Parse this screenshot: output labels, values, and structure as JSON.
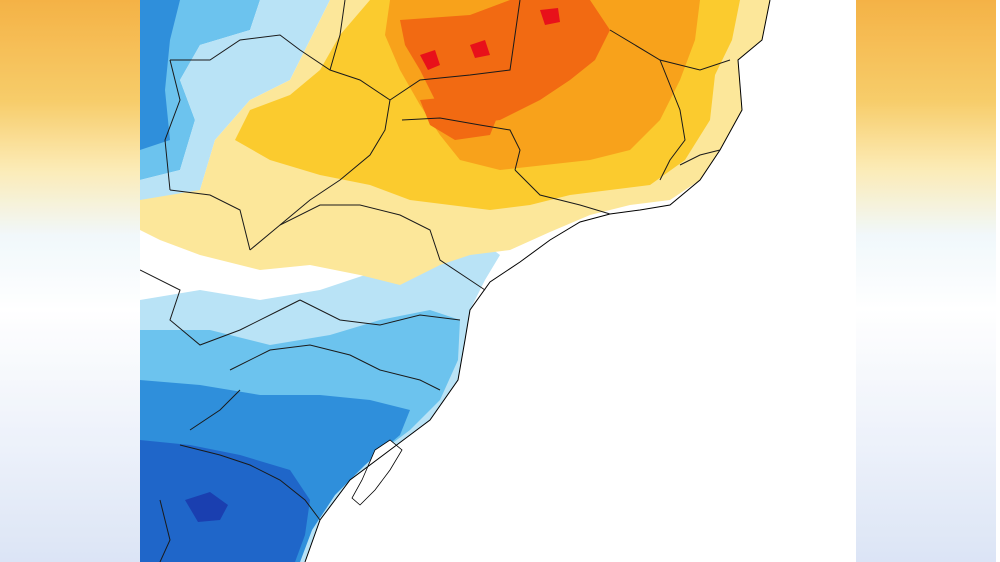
{
  "palette": {
    "strong_hot": "#e8111a",
    "hot": "#f26a12",
    "warm_orange": "#f8a21b",
    "warm": "#fbcb2e",
    "light_warm": "#fce79a",
    "neutral": "#ffffff",
    "light_cool": "#b9e3f6",
    "cool": "#6cc3ee",
    "cooler": "#2f8fdb",
    "cold": "#1f66c9",
    "very_cold": "#1a3fb0",
    "coastline": "#000000"
  },
  "map": {
    "description_icons": [
      "temperature-anomaly-map",
      "state-border-lines",
      "ocean-area"
    ]
  }
}
